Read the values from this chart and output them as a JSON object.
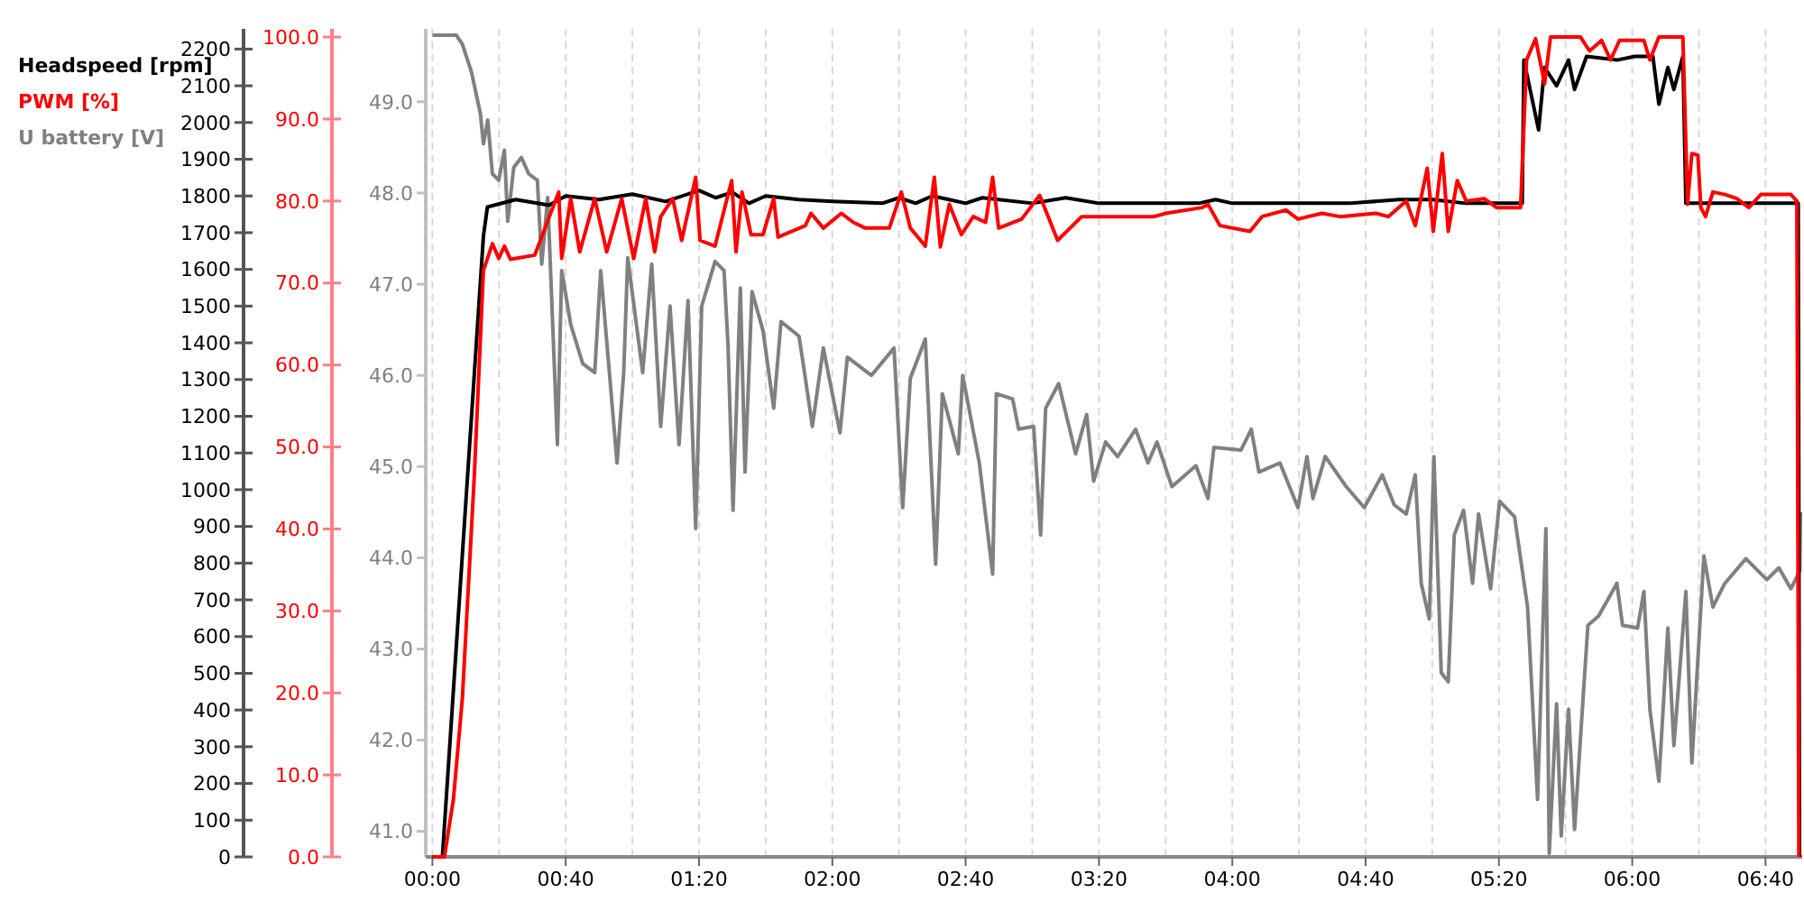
{
  "chart_data": {
    "type": "line",
    "legend": "top left",
    "grid": "x",
    "line_style": "solid",
    "marker": "none",
    "xlim": [
      -2,
      411
    ],
    "xticks": [
      {
        "value": 0,
        "label": "00:00"
      },
      {
        "value": 20,
        "label": null
      },
      {
        "value": 40,
        "label": "00:40"
      },
      {
        "value": 60,
        "label": null
      },
      {
        "value": 80,
        "label": "01:20"
      },
      {
        "value": 100,
        "label": null
      },
      {
        "value": 120,
        "label": "02:00"
      },
      {
        "value": 140,
        "label": null
      },
      {
        "value": 160,
        "label": "02:40"
      },
      {
        "value": 180,
        "label": null
      },
      {
        "value": 200,
        "label": "03:20"
      },
      {
        "value": 220,
        "label": null
      },
      {
        "value": 240,
        "label": "04:00"
      },
      {
        "value": 260,
        "label": null
      },
      {
        "value": 280,
        "label": "04:40"
      },
      {
        "value": 300,
        "label": null
      },
      {
        "value": 320,
        "label": "05:20"
      },
      {
        "value": 340,
        "label": null
      },
      {
        "value": 360,
        "label": "06:00"
      },
      {
        "value": 380,
        "label": null
      },
      {
        "value": 400,
        "label": "06:40"
      }
    ],
    "ylim": [
      0,
      2255
    ],
    "yticks": [
      0,
      100,
      200,
      300,
      400,
      500,
      600,
      700,
      800,
      900,
      1000,
      1100,
      1200,
      1300,
      1400,
      1500,
      1600,
      1700,
      1800,
      1900,
      2000,
      2100,
      2200
    ],
    "y2lim": [
      0,
      101
    ],
    "y2ticks": [
      {
        "value": 0,
        "label": "0.0"
      },
      {
        "value": 10,
        "label": "10.0"
      },
      {
        "value": 20,
        "label": "20.0"
      },
      {
        "value": 30,
        "label": "30.0"
      },
      {
        "value": 40,
        "label": "40.0"
      },
      {
        "value": 50,
        "label": "50.0"
      },
      {
        "value": 60,
        "label": "60.0"
      },
      {
        "value": 70,
        "label": "70.0"
      },
      {
        "value": 80,
        "label": "80.0"
      },
      {
        "value": 90,
        "label": "90.0"
      },
      {
        "value": 100,
        "label": "100.0"
      }
    ],
    "y3lim": [
      40.72,
      49.8
    ],
    "y3ticks": [
      {
        "value": 41,
        "label": "41.0"
      },
      {
        "value": 42,
        "label": "42.0"
      },
      {
        "value": 43,
        "label": "43.0"
      },
      {
        "value": 44,
        "label": "44.0"
      },
      {
        "value": 45,
        "label": "45.0"
      },
      {
        "value": 46,
        "label": "46.0"
      },
      {
        "value": 47,
        "label": "47.0"
      },
      {
        "value": 48,
        "label": "48.0"
      },
      {
        "value": 49,
        "label": "49.0"
      }
    ],
    "series": [
      {
        "name": "U battery [V]",
        "color": "#808080",
        "axis": "y3",
        "x": [
          0,
          7.2,
          9,
          11.7,
          14.4,
          15.3,
          16.6,
          18,
          19.9,
          21.6,
          22.6,
          24.4,
          26.7,
          28.9,
          31.5,
          32.8,
          34.6,
          37.5,
          38.8,
          41.5,
          45.1,
          48.7,
          50.5,
          55.4,
          57.4,
          58.6,
          63.1,
          65.8,
          68.5,
          71.3,
          74,
          76.7,
          79,
          80.8,
          84.8,
          87.5,
          88.7,
          90.2,
          92.4,
          93.8,
          95.9,
          99.2,
          102.4,
          104.6,
          110,
          111.9,
          114,
          117.3,
          122.3,
          124.5,
          131.7,
          138.5,
          141.1,
          143.4,
          147.9,
          151,
          153,
          157.8,
          159.1,
          164.1,
          168.1,
          169.2,
          174.1,
          175.9,
          180.4,
          182.5,
          184,
          187.9,
          193,
          196.3,
          198.4,
          202,
          205.6,
          211,
          214.7,
          217.4,
          221.9,
          229.1,
          232.7,
          234.5,
          242.6,
          245.7,
          248,
          254.3,
          259.7,
          262.4,
          264.2,
          267.9,
          274.2,
          279.6,
          285,
          288.6,
          292.2,
          294.9,
          296.7,
          299.1,
          300.5,
          302.7,
          304.8,
          306.6,
          309.4,
          312.1,
          313.9,
          317.5,
          320.2,
          324.7,
          328.6,
          331.6,
          334.1,
          335.1,
          337.3,
          338.7,
          340.9,
          342.7,
          345.4,
          346.7,
          349.9,
          355.4,
          357.1,
          361.6,
          363.5,
          365.3,
          368,
          370.7,
          372.5,
          376.1,
          377.9,
          381.5,
          384.2,
          387.8,
          394.1,
          400.4,
          404,
          407.6,
          410.3,
          410.5
        ],
        "values": [
          49.73,
          49.73,
          49.63,
          49.33,
          48.87,
          48.54,
          48.8,
          48.21,
          48.14,
          48.47,
          47.69,
          48.28,
          48.39,
          48.21,
          48.14,
          47.22,
          47.95,
          45.24,
          47.15,
          46.56,
          46.13,
          46.03,
          47.15,
          45.04,
          46.03,
          47.29,
          46.03,
          47.22,
          45.44,
          46.76,
          45.24,
          46.82,
          44.32,
          46.76,
          47.25,
          47.15,
          46.33,
          44.52,
          46.96,
          44.94,
          46.92,
          46.49,
          45.64,
          46.59,
          46.43,
          45.97,
          45.44,
          46.3,
          45.37,
          46.2,
          46,
          46.3,
          44.55,
          45.97,
          46.4,
          43.93,
          45.8,
          45.14,
          46,
          45.04,
          43.82,
          45.8,
          45.74,
          45.41,
          45.44,
          44.25,
          45.64,
          45.91,
          45.14,
          45.57,
          44.84,
          45.27,
          45.11,
          45.41,
          45.04,
          45.27,
          44.78,
          45.01,
          44.65,
          45.21,
          45.18,
          45.41,
          44.94,
          45.04,
          44.55,
          45.11,
          44.65,
          45.11,
          44.78,
          44.55,
          44.91,
          44.58,
          44.48,
          44.91,
          43.72,
          43.33,
          45.11,
          42.74,
          42.64,
          44.25,
          44.52,
          43.72,
          44.48,
          43.66,
          44.62,
          44.45,
          43.46,
          41.35,
          44.32,
          40.76,
          42.4,
          40.95,
          42.34,
          41.02,
          42.54,
          43.26,
          43.36,
          43.72,
          43.26,
          43.23,
          43.63,
          42.34,
          41.55,
          43.23,
          41.94,
          43.63,
          41.75,
          44.02,
          43.46,
          43.72,
          43.99,
          43.76,
          43.89,
          43.66,
          43.86,
          44.5
        ]
      },
      {
        "name": "Headspeed [rpm]",
        "color": "#000000",
        "axis": "y",
        "x": [
          0,
          3,
          15.3,
          16.5,
          25,
          35,
          40,
          50,
          60,
          70,
          80,
          85,
          90,
          95,
          100,
          110,
          120,
          135,
          140,
          145,
          150,
          155,
          160,
          165,
          180,
          190,
          200,
          230,
          235,
          240,
          275,
          290,
          300,
          310,
          327,
          327.5,
          331.9,
          333.7,
          337.3,
          340.9,
          342.7,
          346.3,
          355.4,
          360.8,
          366.2,
          368,
          370.7,
          372.5,
          375.2,
          376.1,
          390,
          409.8,
          410.2
        ],
        "values": [
          0,
          0,
          1690,
          1770,
          1790,
          1775,
          1800,
          1790,
          1805,
          1785,
          1815,
          1795,
          1810,
          1780,
          1800,
          1790,
          1785,
          1780,
          1795,
          1780,
          1800,
          1790,
          1780,
          1795,
          1780,
          1795,
          1780,
          1780,
          1790,
          1780,
          1780,
          1790,
          1790,
          1780,
          1780,
          2170,
          1980,
          2150,
          2100,
          2170,
          2090,
          2180,
          2170,
          2180,
          2180,
          2050,
          2150,
          2090,
          2180,
          1780,
          1780,
          1780,
          0
        ]
      },
      {
        "name": "PWM [%]",
        "color": "#ff0000",
        "axis": "y2",
        "x": [
          0,
          3.6,
          6.3,
          9,
          12.6,
          15.3,
          18,
          19.9,
          21.6,
          23.4,
          30.7,
          37.9,
          38.8,
          41.5,
          44.2,
          48.7,
          52.3,
          56.8,
          60.4,
          64,
          66.7,
          68.5,
          72.1,
          74.8,
          79,
          80.3,
          84.8,
          88.4,
          89.8,
          91.1,
          92.9,
          95.6,
          99.2,
          102.4,
          103.7,
          111.9,
          113.6,
          117.3,
          122.7,
          126.3,
          129.9,
          137.1,
          140.7,
          143.4,
          147.9,
          150.6,
          152.4,
          155.1,
          158.7,
          162.3,
          166,
          168.1,
          169.9,
          176.8,
          182.2,
          187.6,
          194.8,
          205.6,
          216.5,
          220.1,
          230.9,
          232.7,
          236.3,
          245.3,
          248.9,
          256.1,
          259.7,
          266.9,
          272.3,
          283.1,
          286.8,
          292.2,
          294.9,
          298.5,
          300.3,
          303,
          304.8,
          307.5,
          310.2,
          315.6,
          319.3,
          326.5,
          328.3,
          331,
          333.7,
          335.5,
          344.5,
          347.2,
          350.8,
          353.5,
          356.2,
          363.5,
          365.3,
          368,
          375.2,
          376.6,
          377.9,
          379.7,
          380.6,
          382,
          384.2,
          387.8,
          391.4,
          395,
          398.6,
          407.6,
          409.4,
          410
        ],
        "values": [
          0,
          0,
          7,
          19.4,
          46.7,
          71.5,
          74.8,
          73,
          74.5,
          72.9,
          73.4,
          81.1,
          73,
          80.3,
          73.8,
          80.3,
          73.8,
          80.3,
          73,
          80.3,
          73.8,
          78.1,
          80.3,
          75.2,
          82.9,
          75.2,
          74.5,
          80.3,
          82.5,
          73.8,
          81.1,
          75.9,
          75.9,
          80.3,
          75.6,
          77,
          78.5,
          76.7,
          78.5,
          77.4,
          76.7,
          76.7,
          81.1,
          76.7,
          74.5,
          82.9,
          74.4,
          79.6,
          75.9,
          78.1,
          77.4,
          82.9,
          76.7,
          77.8,
          80.7,
          75.2,
          78.1,
          78.1,
          78.1,
          78.5,
          79.2,
          79.6,
          77,
          76.3,
          78.1,
          78.9,
          77.8,
          78.5,
          78.1,
          78.5,
          78.1,
          80,
          77,
          84,
          76.3,
          85.8,
          76.3,
          82.5,
          80,
          80.3,
          79.2,
          79.2,
          97.2,
          99.8,
          94.3,
          100,
          100,
          98.3,
          99.6,
          97.2,
          99.6,
          99.6,
          97.2,
          100,
          100,
          79.6,
          85.8,
          85.6,
          79.2,
          78.1,
          81.1,
          80.8,
          80.3,
          79.2,
          80.8,
          80.8,
          80,
          0
        ]
      }
    ]
  }
}
